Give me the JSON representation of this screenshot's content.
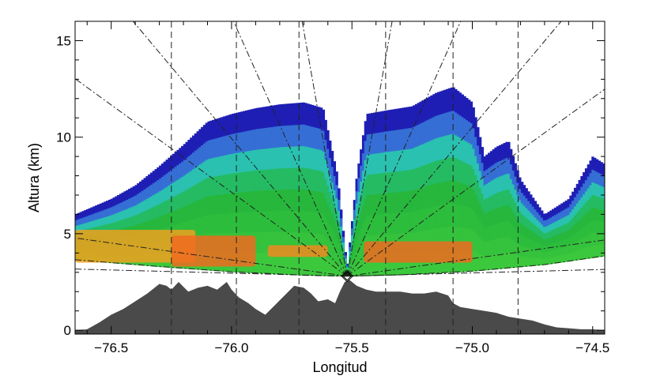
{
  "chart_data": {
    "type": "area",
    "title": "",
    "xlabel": "Longitud",
    "ylabel": "Altura (km)",
    "xlim": [
      -76.65,
      -74.45
    ],
    "ylim": [
      -0.2,
      16.0
    ],
    "x_ticks": [
      -76.5,
      -76.0,
      -75.5,
      -75.0,
      -74.5
    ],
    "x_tick_labels": [
      "−76.5",
      "−76.0",
      "−75.5",
      "−75.0",
      "−74.5"
    ],
    "y_ticks": [
      0,
      5,
      10,
      15
    ],
    "y_tick_labels": [
      "0",
      "5",
      "10",
      "15"
    ],
    "grid": false,
    "radar": {
      "x": -75.52,
      "y": 2.8,
      "marker": "diamond"
    },
    "vertical_dashed_lines_x": [
      -76.25,
      -75.98,
      -75.72,
      -75.36,
      -75.08,
      -74.81
    ],
    "elevation_beams_deg": [
      80,
      66,
      50,
      36,
      8,
      1.5
    ],
    "scan_bottom_curve": {
      "x": [
        -76.65,
        -76.3,
        -76.0,
        -75.7,
        -75.52,
        -75.3,
        -75.0,
        -74.7,
        -74.45
      ],
      "y": [
        3.65,
        3.3,
        3.03,
        2.85,
        2.8,
        2.87,
        3.06,
        3.4,
        3.85
      ]
    },
    "series": [
      {
        "type": "area",
        "color": "#4a4a4a",
        "x": [
          -76.65,
          -76.6,
          -76.55,
          -76.5,
          -76.45,
          -76.4,
          -76.35,
          -76.3,
          -76.27,
          -76.25,
          -76.22,
          -76.18,
          -76.14,
          -76.1,
          -76.06,
          -76.02,
          -76.0,
          -75.97,
          -75.93,
          -75.9,
          -75.86,
          -75.82,
          -75.78,
          -75.74,
          -75.7,
          -75.67,
          -75.64,
          -75.6,
          -75.57,
          -75.55,
          -75.53,
          -75.51,
          -75.48,
          -75.44,
          -75.4,
          -75.35,
          -75.3,
          -75.25,
          -75.2,
          -75.15,
          -75.1,
          -75.08,
          -75.05,
          -75.0,
          -74.95,
          -74.9,
          -74.85,
          -74.8,
          -74.75,
          -74.7,
          -74.65,
          -74.6,
          -74.55,
          -74.5,
          -74.45
        ],
        "y": [
          0.0,
          0.05,
          0.4,
          0.8,
          1.1,
          1.5,
          1.9,
          2.4,
          2.3,
          2.1,
          2.5,
          2.0,
          2.2,
          2.3,
          2.1,
          2.5,
          2.1,
          1.7,
          1.4,
          1.1,
          0.8,
          1.3,
          1.8,
          2.3,
          2.2,
          1.9,
          1.5,
          1.6,
          1.4,
          2.0,
          2.5,
          2.6,
          2.3,
          2.1,
          2.0,
          2.0,
          2.0,
          1.9,
          1.9,
          2.0,
          1.8,
          1.4,
          1.2,
          1.1,
          1.0,
          0.9,
          0.7,
          0.6,
          0.5,
          0.3,
          0.15,
          0.1,
          0.05,
          0.05,
          0.0
        ]
      },
      {
        "type": "area",
        "color": "#2db82d",
        "x": [
          -76.65,
          -76.5,
          -76.4,
          -76.3,
          -76.2,
          -76.1,
          -76.0,
          -75.9,
          -75.8,
          -75.7,
          -75.62,
          -75.56,
          -75.52,
          -75.48,
          -75.44,
          -75.35,
          -75.25,
          -75.15,
          -75.08,
          -75.0,
          -74.95,
          -74.9,
          -74.85,
          -74.8,
          -74.7,
          -74.6,
          -74.5,
          -74.45
        ],
        "y": [
          6.0,
          6.8,
          7.5,
          8.5,
          9.6,
          10.8,
          11.2,
          11.5,
          11.7,
          11.8,
          11.5,
          8.0,
          3.2,
          8.0,
          11.2,
          11.4,
          11.6,
          12.3,
          12.6,
          11.8,
          9.0,
          9.5,
          9.8,
          7.8,
          6.0,
          6.8,
          9.0,
          8.6
        ]
      }
    ],
    "bright_band": [
      {
        "x_start": -76.65,
        "x_end": -76.15,
        "y_bottom": 3.5,
        "y_top": 5.2,
        "color": "#f0a020"
      },
      {
        "x_start": -76.25,
        "x_end": -75.9,
        "y_bottom": 3.3,
        "y_top": 4.9,
        "color": "#f06a20"
      },
      {
        "x_start": -75.85,
        "x_end": -75.6,
        "y_bottom": 3.8,
        "y_top": 4.4,
        "color": "#f08a20"
      },
      {
        "x_start": -75.45,
        "x_end": -75.0,
        "y_bottom": 3.5,
        "y_top": 4.6,
        "color": "#f06a20"
      }
    ]
  }
}
